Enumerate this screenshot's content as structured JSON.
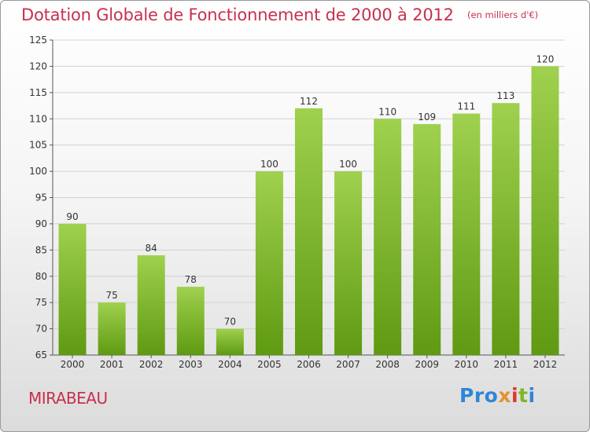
{
  "title": "Dotation Globale de Fonctionnement de 2000 à 2012",
  "subtitle": "(en milliers d'€)",
  "town": "MIRABEAU",
  "logo": {
    "parts": [
      "Pro",
      "x",
      "i",
      "t",
      "i"
    ],
    "colors": [
      "#2e86d6",
      "#e6912a",
      "#d93a2e",
      "#7cb81f",
      "#2e86d6"
    ]
  },
  "colors": {
    "title": "#c8304e",
    "bar_light": "#9fd14e",
    "bar_dark": "#5f9a12"
  },
  "chart_data": {
    "type": "bar",
    "title": "Dotation Globale de Fonctionnement de 2000 à 2012",
    "subtitle": "(en milliers d'€)",
    "xlabel": "",
    "ylabel": "",
    "categories": [
      "2000",
      "2001",
      "2002",
      "2003",
      "2004",
      "2005",
      "2006",
      "2007",
      "2008",
      "2009",
      "2010",
      "2011",
      "2012"
    ],
    "values": [
      90,
      75,
      84,
      78,
      70,
      100,
      112,
      100,
      110,
      109,
      111,
      113,
      120
    ],
    "ylim": [
      65,
      125
    ],
    "yticks": [
      65,
      70,
      75,
      80,
      85,
      90,
      95,
      100,
      105,
      110,
      115,
      120,
      125
    ],
    "grid": true,
    "legend": "none"
  }
}
